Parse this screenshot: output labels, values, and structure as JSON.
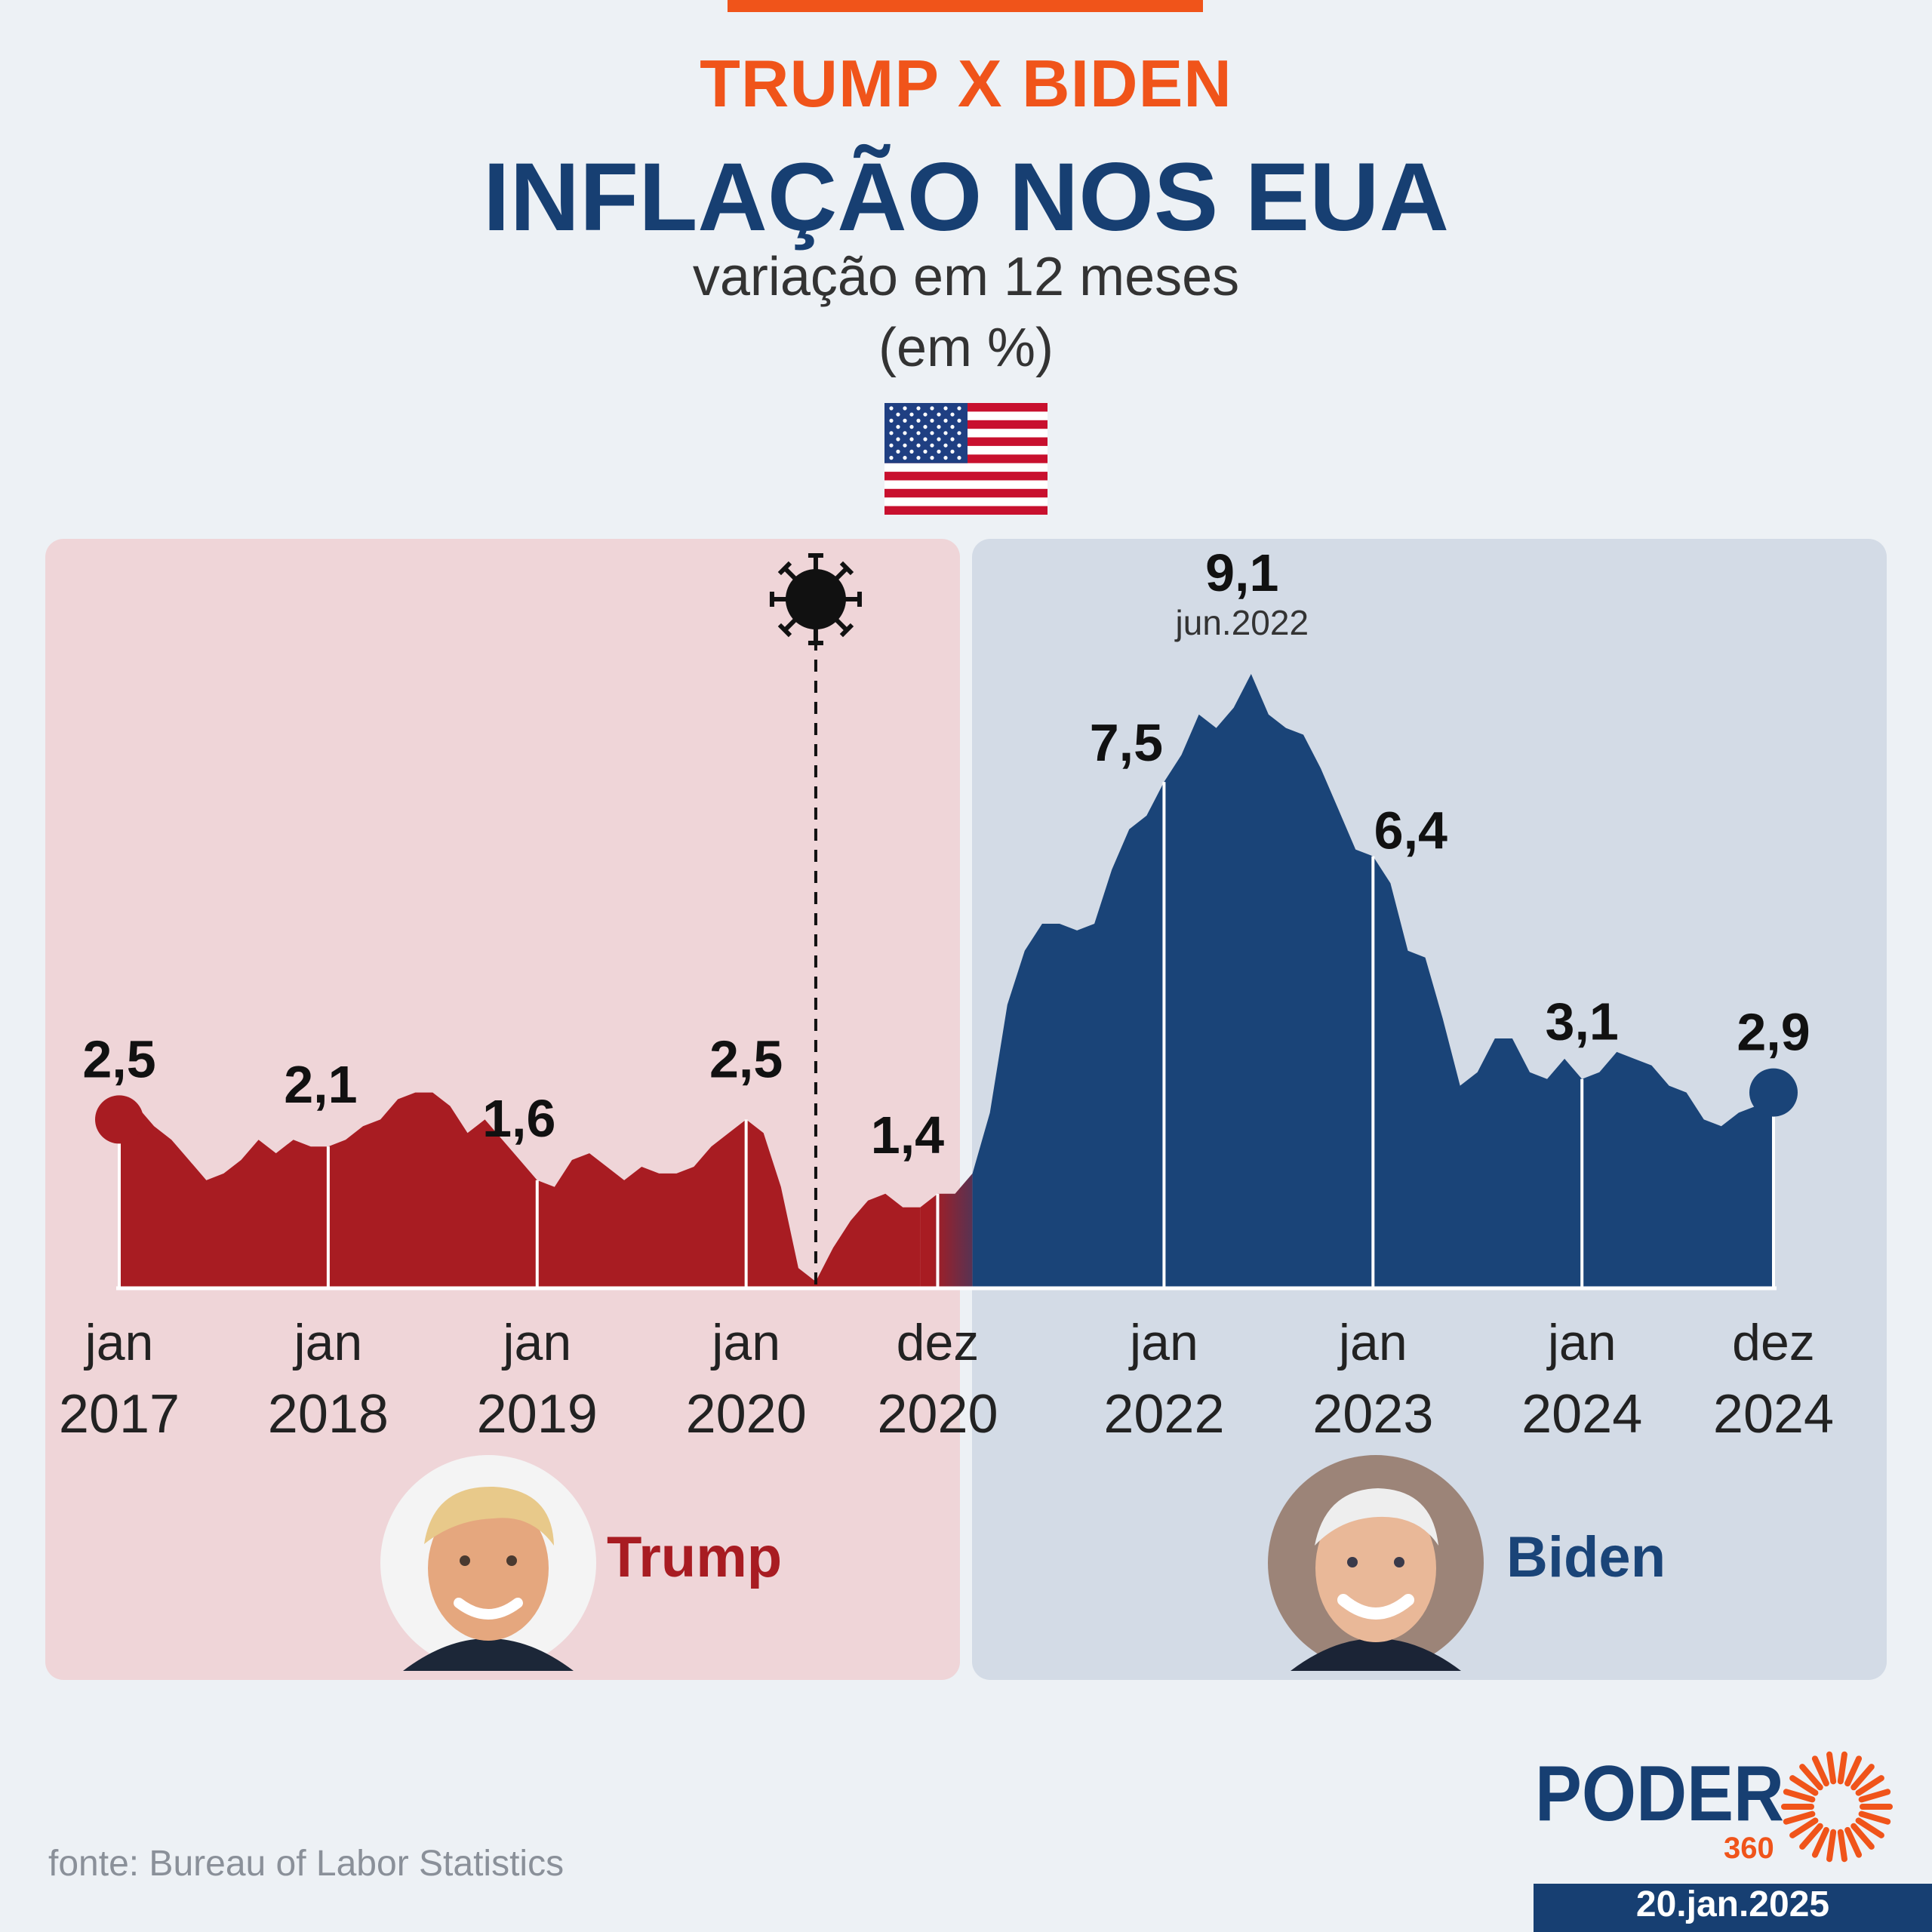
{
  "header": {
    "kicker": "TRUMP X BIDEN",
    "title": "INFLAÇÃO NOS EUA",
    "subtitle": "variação em 12 meses",
    "unit": "(em %)"
  },
  "colors": {
    "trump": "#a81c22",
    "biden": "#1a4478",
    "accent": "#f0541a",
    "trump_panel": "#efd5d8",
    "biden_panel": "#d3dbe6"
  },
  "icons": [
    "us-flag-icon",
    "virus-icon"
  ],
  "chart_data": {
    "type": "area",
    "title": "INFLAÇÃO NOS EUA",
    "subtitle": "variação em 12 meses (em %)",
    "xlabel": "",
    "ylabel": "",
    "ylim": [
      0,
      10
    ],
    "grid": false,
    "series": [
      {
        "name": "Trump",
        "x_start": "2017-01",
        "x_end": "2020-12",
        "values": [
          2.5,
          2.7,
          2.4,
          2.2,
          1.9,
          1.6,
          1.7,
          1.9,
          2.2,
          2.0,
          2.2,
          2.1,
          2.1,
          2.2,
          2.4,
          2.5,
          2.8,
          2.9,
          2.9,
          2.7,
          2.3,
          2.5,
          2.2,
          1.9,
          1.6,
          1.5,
          1.9,
          2.0,
          1.8,
          1.6,
          1.8,
          1.7,
          1.7,
          1.8,
          2.1,
          2.3,
          2.5,
          2.3,
          1.5,
          0.3,
          0.1,
          0.6,
          1.0,
          1.3,
          1.4,
          1.2,
          1.2,
          1.4
        ]
      },
      {
        "name": "Biden",
        "x_start": "2021-01",
        "x_end": "2024-12",
        "values": [
          1.4,
          1.7,
          2.6,
          4.2,
          5.0,
          5.4,
          5.4,
          5.3,
          5.4,
          6.2,
          6.8,
          7.0,
          7.5,
          7.9,
          8.5,
          8.3,
          8.6,
          9.1,
          8.5,
          8.3,
          8.2,
          7.7,
          7.1,
          6.5,
          6.4,
          6.0,
          5.0,
          4.9,
          4.0,
          3.0,
          3.2,
          3.7,
          3.7,
          3.2,
          3.1,
          3.4,
          3.1,
          3.2,
          3.5,
          3.4,
          3.3,
          3.0,
          2.9,
          2.5,
          2.4,
          2.6,
          2.7,
          2.9
        ]
      }
    ],
    "x_ticks": [
      {
        "month": "jan",
        "year": "2017",
        "index": 0
      },
      {
        "month": "jan",
        "year": "2018",
        "index": 12
      },
      {
        "month": "jan",
        "year": "2019",
        "index": 24
      },
      {
        "month": "jan",
        "year": "2020",
        "index": 36
      },
      {
        "month": "dez",
        "year": "2020",
        "index": 47
      },
      {
        "month": "jan",
        "year": "2022",
        "index": 60
      },
      {
        "month": "jan",
        "year": "2023",
        "index": 72
      },
      {
        "month": "jan",
        "year": "2024",
        "index": 84
      },
      {
        "month": "dez",
        "year": "2024",
        "index": 95
      }
    ],
    "data_labels": [
      {
        "index": 0,
        "text": "2,5"
      },
      {
        "index": 12,
        "text": "2,1"
      },
      {
        "index": 24,
        "text": "1,6"
      },
      {
        "index": 36,
        "text": "2,5"
      },
      {
        "index": 47,
        "text": "1,4"
      },
      {
        "index": 60,
        "text": "7,5"
      },
      {
        "index": 65,
        "text": "9,1",
        "sub": "jun.2022"
      },
      {
        "index": 72,
        "text": "6,4"
      },
      {
        "index": 84,
        "text": "3,1"
      },
      {
        "index": 95,
        "text": "2,9"
      }
    ],
    "covid_marker_index": 40
  },
  "presidents": {
    "trump": {
      "name": "Trump"
    },
    "biden": {
      "name": "Biden"
    }
  },
  "footer": {
    "source": "fonte: Bureau of Labor Statistics",
    "logo_text": "PODER",
    "logo_number": "360",
    "date": "20.jan.2025"
  }
}
